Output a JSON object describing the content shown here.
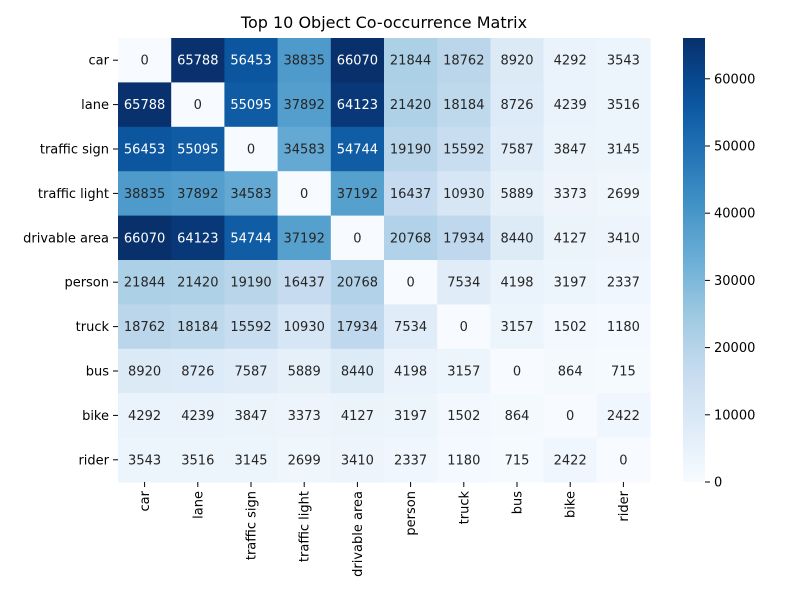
{
  "chart_data": {
    "type": "heatmap",
    "title": "Top 10 Object Co-occurrence Matrix",
    "xlabel": "",
    "ylabel": "",
    "categories": [
      "car",
      "lane",
      "traffic sign",
      "traffic light",
      "drivable area",
      "person",
      "truck",
      "bus",
      "bike",
      "rider"
    ],
    "matrix": [
      [
        0,
        65788,
        56453,
        38835,
        66070,
        21844,
        18762,
        8920,
        4292,
        3543
      ],
      [
        65788,
        0,
        55095,
        37892,
        64123,
        21420,
        18184,
        8726,
        4239,
        3516
      ],
      [
        56453,
        55095,
        0,
        34583,
        54744,
        19190,
        15592,
        7587,
        3847,
        3145
      ],
      [
        38835,
        37892,
        34583,
        0,
        37192,
        16437,
        10930,
        5889,
        3373,
        2699
      ],
      [
        66070,
        64123,
        54744,
        37192,
        0,
        20768,
        17934,
        8440,
        4127,
        3410
      ],
      [
        21844,
        21420,
        19190,
        16437,
        20768,
        0,
        7534,
        4198,
        3197,
        2337
      ],
      [
        18762,
        18184,
        15592,
        10930,
        17934,
        7534,
        0,
        3157,
        1502,
        1180
      ],
      [
        8920,
        8726,
        7587,
        5889,
        8440,
        4198,
        3157,
        0,
        864,
        715
      ],
      [
        4292,
        4239,
        3847,
        3373,
        4127,
        3197,
        1502,
        864,
        0,
        2422
      ],
      [
        3543,
        3516,
        3145,
        2699,
        3410,
        2337,
        1180,
        715,
        2422,
        0
      ]
    ],
    "colorbar": {
      "min": 0,
      "max": 66070,
      "ticks": [
        0,
        10000,
        20000,
        30000,
        40000,
        50000,
        60000
      ],
      "colormap": "Blues"
    },
    "colors": {
      "low": "#f7fbff",
      "high": "#08306b",
      "text_dark": "#262626",
      "text_light": "#ffffff"
    }
  }
}
